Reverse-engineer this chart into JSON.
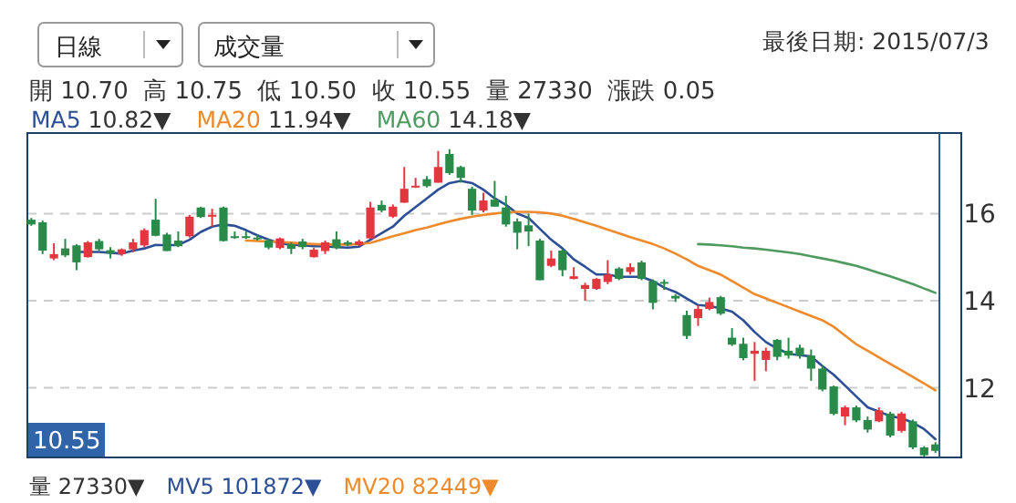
{
  "chart_data": {
    "type": "candlestick",
    "categories": [
      null,
      null,
      null,
      null,
      null,
      null,
      null,
      null,
      null,
      null,
      null,
      null,
      null,
      null,
      null,
      null,
      null,
      null,
      null,
      null,
      null,
      null,
      null,
      null,
      null,
      null,
      null,
      null,
      null,
      null,
      null,
      null,
      null,
      null,
      null,
      null,
      null,
      null,
      null,
      null,
      null,
      null,
      null,
      null,
      null,
      null,
      null,
      null,
      null,
      null,
      null,
      null,
      null,
      null,
      null,
      null,
      null,
      null,
      null,
      null,
      null,
      null,
      null,
      null,
      null,
      null,
      null,
      null,
      null,
      null,
      null,
      null,
      null,
      null,
      null,
      null,
      null,
      null,
      null,
      null,
      null
    ],
    "ohlc": [
      [
        15.86,
        15.9,
        15.72,
        15.75
      ],
      [
        15.8,
        15.84,
        15.07,
        15.15
      ],
      [
        14.97,
        15.32,
        14.93,
        15.07
      ],
      [
        15.2,
        15.42,
        15.0,
        15.04
      ],
      [
        15.27,
        15.3,
        14.7,
        14.88
      ],
      [
        15.0,
        15.37,
        14.99,
        15.34
      ],
      [
        15.37,
        15.42,
        15.15,
        15.18
      ],
      [
        15.16,
        15.23,
        14.97,
        15.08
      ],
      [
        15.07,
        15.2,
        15.03,
        15.18
      ],
      [
        15.18,
        15.42,
        15.11,
        15.34
      ],
      [
        15.27,
        15.66,
        15.23,
        15.62
      ],
      [
        15.86,
        16.34,
        15.48,
        15.49
      ],
      [
        15.52,
        15.56,
        15.14,
        15.14
      ],
      [
        15.38,
        15.59,
        15.23,
        15.25
      ],
      [
        15.48,
        15.97,
        15.45,
        15.93
      ],
      [
        16.14,
        16.16,
        15.9,
        15.92
      ],
      [
        15.95,
        16.11,
        15.7,
        15.97
      ],
      [
        16.14,
        16.16,
        15.36,
        15.37
      ],
      [
        15.48,
        15.59,
        15.42,
        15.44
      ],
      [
        15.48,
        15.59,
        15.42,
        15.44
      ],
      [
        15.45,
        15.51,
        15.38,
        15.41
      ],
      [
        15.38,
        15.42,
        15.18,
        15.22
      ],
      [
        15.21,
        15.45,
        15.18,
        15.43
      ],
      [
        15.3,
        15.34,
        15.07,
        15.19
      ],
      [
        15.36,
        15.42,
        15.18,
        15.23
      ],
      [
        15.0,
        15.21,
        14.99,
        15.17
      ],
      [
        15.14,
        15.38,
        15.07,
        15.34
      ],
      [
        15.41,
        15.59,
        15.18,
        15.21
      ],
      [
        15.34,
        15.38,
        15.25,
        15.29
      ],
      [
        15.28,
        15.4,
        15.25,
        15.36
      ],
      [
        15.43,
        16.27,
        15.43,
        16.14
      ],
      [
        16.2,
        16.3,
        16.03,
        16.07
      ],
      [
        15.93,
        16.21,
        15.9,
        16.16
      ],
      [
        16.25,
        17.07,
        16.25,
        16.57
      ],
      [
        16.6,
        16.82,
        16.59,
        16.64
      ],
      [
        16.79,
        16.86,
        16.6,
        16.63
      ],
      [
        16.71,
        17.44,
        16.71,
        17.07
      ],
      [
        17.37,
        17.48,
        16.89,
        16.93
      ],
      [
        17.07,
        17.1,
        16.71,
        16.82
      ],
      [
        16.57,
        16.62,
        15.97,
        16.07
      ],
      [
        16.07,
        16.48,
        16.03,
        16.3
      ],
      [
        16.32,
        16.75,
        16.16,
        16.16
      ],
      [
        16.14,
        16.41,
        15.7,
        15.75
      ],
      [
        15.82,
        15.89,
        15.18,
        15.56
      ],
      [
        15.73,
        16.0,
        15.25,
        15.59
      ],
      [
        15.38,
        15.42,
        14.47,
        14.47
      ],
      [
        14.8,
        15.15,
        14.77,
        14.97
      ],
      [
        15.15,
        15.18,
        14.56,
        14.7
      ],
      [
        14.5,
        14.77,
        14.49,
        14.56
      ],
      [
        14.27,
        14.41,
        14.0,
        14.36
      ],
      [
        14.27,
        14.52,
        14.25,
        14.5
      ],
      [
        14.43,
        14.93,
        14.38,
        14.6
      ],
      [
        14.74,
        14.77,
        14.47,
        14.5
      ],
      [
        14.66,
        14.86,
        14.6,
        14.77
      ],
      [
        14.88,
        14.92,
        14.47,
        14.5
      ],
      [
        14.45,
        14.49,
        13.8,
        13.95
      ],
      [
        14.43,
        14.49,
        14.25,
        14.41
      ],
      [
        14.11,
        14.15,
        13.97,
        14.05
      ],
      [
        13.67,
        13.77,
        13.12,
        13.19
      ],
      [
        13.6,
        13.9,
        13.42,
        13.81
      ],
      [
        13.81,
        14.07,
        13.78,
        13.97
      ],
      [
        14.08,
        14.11,
        13.67,
        13.7
      ],
      [
        13.15,
        13.37,
        12.96,
        12.99
      ],
      [
        13.01,
        13.15,
        12.63,
        12.68
      ],
      [
        12.78,
        13.05,
        12.16,
        12.85
      ],
      [
        12.64,
        12.92,
        12.38,
        12.85
      ],
      [
        13.1,
        13.12,
        12.63,
        12.71
      ],
      [
        12.85,
        13.15,
        12.67,
        12.74
      ],
      [
        12.92,
        12.99,
        12.67,
        12.74
      ],
      [
        12.74,
        12.88,
        12.16,
        12.44
      ],
      [
        12.44,
        12.52,
        11.92,
        11.96
      ],
      [
        12.03,
        12.05,
        11.37,
        11.4
      ],
      [
        11.34,
        11.59,
        11.14,
        11.55
      ],
      [
        11.55,
        11.59,
        11.21,
        11.25
      ],
      [
        11.26,
        11.34,
        10.97,
        11.04
      ],
      [
        11.23,
        11.55,
        11.21,
        11.48
      ],
      [
        11.41,
        11.45,
        10.86,
        10.9
      ],
      [
        11.01,
        11.45,
        10.97,
        11.41
      ],
      [
        11.23,
        11.27,
        10.59,
        10.63
      ],
      [
        10.63,
        10.66,
        10.42,
        10.45
      ],
      [
        10.7,
        10.75,
        10.5,
        10.55
      ]
    ],
    "colors": [
      "#2a8a4a",
      "#2a8a4a",
      "#e2373f",
      "#2a8a4a",
      "#2a8a4a",
      "#e2373f",
      "#2a8a4a",
      "#2a8a4a",
      "#e2373f",
      "#e2373f",
      "#e2373f",
      "#2a8a4a",
      "#2a8a4a",
      "#2a8a4a",
      "#e2373f",
      "#2a8a4a",
      "#e2373f",
      "#2a8a4a",
      "#2a8a4a",
      "#2a8a4a",
      "#2a8a4a",
      "#2a8a4a",
      "#e2373f",
      "#2a8a4a",
      "#2a8a4a",
      "#e2373f",
      "#e2373f",
      "#2a8a4a",
      "#2a8a4a",
      "#e2373f",
      "#e2373f",
      "#2a8a4a",
      "#e2373f",
      "#e2373f",
      "#e2373f",
      "#2a8a4a",
      "#e2373f",
      "#2a8a4a",
      "#2a8a4a",
      "#2a8a4a",
      "#e2373f",
      "#2a8a4a",
      "#2a8a4a",
      "#2a8a4a",
      "#2a8a4a",
      "#2a8a4a",
      "#e2373f",
      "#2a8a4a",
      "#e2373f",
      "#e2373f",
      "#e2373f",
      "#e2373f",
      "#2a8a4a",
      "#e2373f",
      "#2a8a4a",
      "#2a8a4a",
      "#2a8a4a",
      "#2a8a4a",
      "#2a8a4a",
      "#e2373f",
      "#e2373f",
      "#2a8a4a",
      "#2a8a4a",
      "#2a8a4a",
      "#e2373f",
      "#e2373f",
      "#2a8a4a",
      "#2a8a4a",
      "#2a8a4a",
      "#2a8a4a",
      "#2a8a4a",
      "#2a8a4a",
      "#e2373f",
      "#2a8a4a",
      "#2a8a4a",
      "#e2373f",
      "#2a8a4a",
      "#e2373f",
      "#2a8a4a",
      "#2a8a4a",
      "#2a8a4a"
    ],
    "series": [
      {
        "name": "MA5",
        "type": "line",
        "color": "#2c4f96",
        "values": [
          null,
          null,
          null,
          null,
          15.12,
          15.12,
          15.12,
          15.1,
          15.08,
          15.15,
          15.2,
          15.28,
          15.27,
          15.28,
          15.4,
          15.58,
          15.7,
          15.75,
          15.72,
          15.62,
          15.5,
          15.4,
          15.32,
          15.28,
          15.27,
          15.25,
          15.25,
          15.23,
          15.22,
          15.24,
          15.4,
          15.55,
          15.7,
          15.95,
          16.15,
          16.35,
          16.55,
          16.7,
          16.75,
          16.7,
          16.55,
          16.35,
          16.2,
          16.0,
          15.9,
          15.65,
          15.4,
          15.2,
          14.95,
          14.78,
          14.6,
          14.6,
          14.55,
          14.55,
          14.55,
          14.45,
          14.3,
          14.2,
          14.05,
          13.9,
          13.88,
          13.82,
          13.75,
          13.55,
          13.28,
          13.05,
          12.9,
          12.78,
          12.75,
          12.72,
          12.5,
          12.3,
          12.05,
          11.8,
          11.55,
          11.45,
          11.35,
          11.3,
          11.2,
          11.05,
          10.82
        ]
      },
      {
        "name": "MA20",
        "type": "line",
        "color": "#ef8a2c",
        "values": [
          null,
          null,
          null,
          null,
          null,
          null,
          null,
          null,
          null,
          null,
          null,
          null,
          null,
          null,
          null,
          null,
          null,
          null,
          null,
          15.38,
          15.37,
          15.36,
          15.35,
          15.33,
          15.31,
          15.3,
          15.29,
          15.29,
          15.29,
          15.3,
          15.33,
          15.4,
          15.48,
          15.55,
          15.62,
          15.68,
          15.75,
          15.82,
          15.88,
          15.93,
          15.97,
          16.0,
          16.03,
          16.04,
          16.04,
          16.03,
          16.0,
          15.95,
          15.88,
          15.8,
          15.72,
          15.63,
          15.55,
          15.46,
          15.38,
          15.3,
          15.2,
          15.08,
          14.95,
          14.8,
          14.7,
          14.6,
          14.45,
          14.3,
          14.15,
          14.05,
          13.95,
          13.85,
          13.75,
          13.65,
          13.55,
          13.4,
          13.2,
          13.0,
          12.85,
          12.7,
          12.55,
          12.4,
          12.25,
          12.1,
          11.94
        ]
      },
      {
        "name": "MA60",
        "type": "line",
        "color": "#4f9a5e",
        "values": [
          null,
          null,
          null,
          null,
          null,
          null,
          null,
          null,
          null,
          null,
          null,
          null,
          null,
          null,
          null,
          null,
          null,
          null,
          null,
          null,
          null,
          null,
          null,
          null,
          null,
          null,
          null,
          null,
          null,
          null,
          null,
          null,
          null,
          null,
          null,
          null,
          null,
          null,
          null,
          null,
          null,
          null,
          null,
          null,
          null,
          null,
          null,
          null,
          null,
          null,
          null,
          null,
          null,
          null,
          null,
          null,
          null,
          null,
          null,
          15.3,
          15.29,
          15.27,
          15.25,
          15.22,
          15.2,
          15.17,
          15.14,
          15.11,
          15.07,
          15.02,
          14.97,
          14.92,
          14.86,
          14.8,
          14.72,
          14.64,
          14.56,
          14.47,
          14.38,
          14.28,
          14.18
        ]
      }
    ],
    "ylim": [
      10.4,
      17.85
    ],
    "yticks": [
      12,
      14,
      16
    ],
    "grid": "y",
    "legend": "top left",
    "tick_labels": "y",
    "annotations": [
      "日線",
      "成交量",
      "最後日期: 2015/07/3",
      "開 10.70  高 10.75  低 10.50  收 10.55  量 27330  漲跌 0.05",
      "10.82▼",
      "11.94▼",
      "14.18▼",
      "10.55",
      "量 27330▼",
      "MV5 101872▼",
      "MV20 82449▼"
    ]
  }
}
